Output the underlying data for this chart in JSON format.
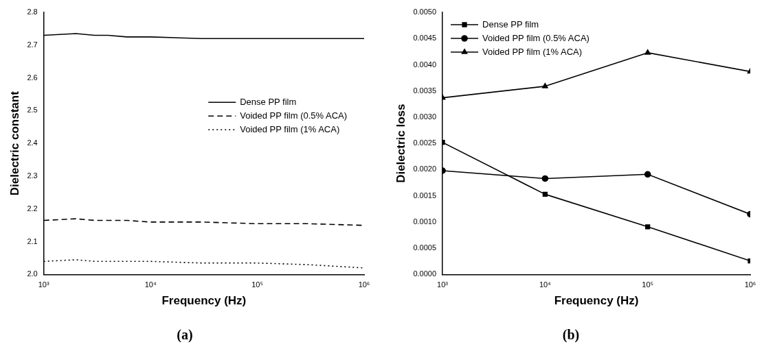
{
  "chart_data": [
    {
      "type": "line",
      "title": "(a)",
      "xlabel": "Frequency (Hz)",
      "ylabel": "Dielectric constant",
      "log": "x",
      "xlim": [
        1000,
        1000000
      ],
      "xticks": [
        {
          "value": 1000,
          "label": "10³"
        },
        {
          "value": 10000,
          "label": "10⁴"
        },
        {
          "value": 100000,
          "label": "10⁵"
        },
        {
          "value": 1000000,
          "label": "10⁶"
        }
      ],
      "ylim": [
        2.0,
        2.8
      ],
      "yticks": [
        {
          "value": 2.0,
          "label": "2.0"
        },
        2.1,
        2.2,
        2.3,
        2.4,
        2.5,
        2.6,
        2.7,
        2.8
      ],
      "grid": false,
      "legend": "right",
      "marker": "none",
      "series": [
        {
          "name": "Dense PP film",
          "color": "#000000",
          "line_style": "solid",
          "x": [
            1000,
            2000,
            3000,
            4000,
            6000,
            10000,
            30000,
            100000,
            300000,
            1000000
          ],
          "values": [
            2.73,
            2.735,
            2.73,
            2.73,
            2.725,
            2.725,
            2.72,
            2.72,
            2.72,
            2.72
          ]
        },
        {
          "name": "Voided PP film (0.5% ACA)",
          "color": "#000000",
          "line_style": "dashed",
          "x": [
            1000,
            2000,
            3000,
            4000,
            6000,
            10000,
            30000,
            100000,
            300000,
            1000000
          ],
          "values": [
            2.165,
            2.17,
            2.165,
            2.165,
            2.165,
            2.16,
            2.16,
            2.155,
            2.155,
            2.15
          ]
        },
        {
          "name": "Voided PP film (1% ACA)",
          "color": "#000000",
          "line_style": "dotted",
          "x": [
            1000,
            2000,
            3000,
            4000,
            6000,
            10000,
            30000,
            100000,
            300000,
            1000000
          ],
          "values": [
            2.04,
            2.045,
            2.04,
            2.04,
            2.04,
            2.04,
            2.035,
            2.035,
            2.03,
            2.02
          ]
        }
      ]
    },
    {
      "type": "line",
      "title": "(b)",
      "xlabel": "Frequency (Hz)",
      "ylabel": "Dielectric loss",
      "log": "x",
      "xlim": [
        1000,
        1000000
      ],
      "xticks": [
        {
          "value": 1000,
          "label": "10³"
        },
        {
          "value": 10000,
          "label": "10⁴"
        },
        {
          "value": 100000,
          "label": "10⁵"
        },
        {
          "value": 1000000,
          "label": "10⁶"
        }
      ],
      "ylim": [
        0,
        0.005
      ],
      "yticks": [
        {
          "value": 0,
          "label": "0.0000"
        },
        {
          "value": 0.0005,
          "label": "0.0005"
        },
        {
          "value": 0.001,
          "label": "0.0010"
        },
        {
          "value": 0.0015,
          "label": "0.0015"
        },
        {
          "value": 0.002,
          "label": "0.0020"
        },
        {
          "value": 0.0025,
          "label": "0.0025"
        },
        {
          "value": 0.003,
          "label": "0.0030"
        },
        {
          "value": 0.0035,
          "label": "0.0035"
        },
        {
          "value": 0.004,
          "label": "0.0040"
        },
        {
          "value": 0.0045,
          "label": "0.0045"
        },
        {
          "value": 0.005,
          "label": "0.0050"
        }
      ],
      "grid": false,
      "legend": "top left",
      "line_style": "solid",
      "series": [
        {
          "name": "Dense PP film",
          "color": "#000000",
          "marker": "square",
          "x": [
            1000,
            10000,
            100000,
            1000000
          ],
          "values": [
            0.00252,
            0.00153,
            0.00091,
            0.00026
          ]
        },
        {
          "name": "Voided PP film (0.5% ACA)",
          "color": "#000000",
          "marker": "circle",
          "x": [
            1000,
            10000,
            100000,
            1000000
          ],
          "values": [
            0.00198,
            0.00183,
            0.00191,
            0.00115
          ]
        },
        {
          "name": "Voided PP film (1% ACA)",
          "color": "#000000",
          "marker": "triangle",
          "x": [
            1000,
            10000,
            100000,
            1000000
          ],
          "values": [
            0.00337,
            0.00359,
            0.00423,
            0.00387
          ]
        }
      ]
    }
  ]
}
